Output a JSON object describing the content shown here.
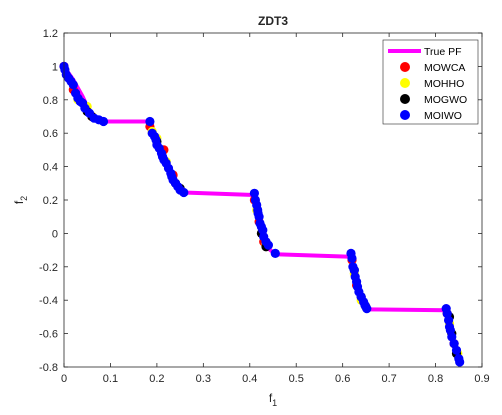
{
  "chart_data": {
    "type": "scatter",
    "title": "ZDT3",
    "xlabel": "f",
    "xlabel_sub": "1",
    "ylabel": "f",
    "ylabel_sub": "2",
    "xlim": [
      0,
      0.9
    ],
    "ylim": [
      -0.8,
      1.2
    ],
    "xticks": [
      0,
      0.1,
      0.2,
      0.3,
      0.4,
      0.5,
      0.6,
      0.7,
      0.8,
      0.9
    ],
    "yticks": [
      -0.8,
      -0.6,
      -0.4,
      -0.2,
      0,
      0.2,
      0.4,
      0.6,
      0.8,
      1,
      1.2
    ],
    "grid": false,
    "legend_position": "top-right",
    "true_pf": {
      "name": "True PF",
      "color": "#ff00ff",
      "segments": [
        [
          [
            0,
            1.0
          ],
          [
            0.01,
            0.96
          ],
          [
            0.02,
            0.92
          ],
          [
            0.03,
            0.87
          ],
          [
            0.04,
            0.82
          ],
          [
            0.05,
            0.76
          ],
          [
            0.06,
            0.72
          ],
          [
            0.07,
            0.69
          ],
          [
            0.083,
            0.67
          ]
        ],
        [
          [
            0.083,
            0.67
          ],
          [
            0.183,
            0.67
          ]
        ],
        [
          [
            0.183,
            0.67
          ],
          [
            0.19,
            0.61
          ],
          [
            0.2,
            0.55
          ],
          [
            0.21,
            0.49
          ],
          [
            0.22,
            0.42
          ],
          [
            0.23,
            0.36
          ],
          [
            0.24,
            0.3
          ],
          [
            0.25,
            0.26
          ],
          [
            0.258,
            0.245
          ]
        ],
        [
          [
            0.258,
            0.245
          ],
          [
            0.409,
            0.23
          ]
        ],
        [
          [
            0.409,
            0.23
          ],
          [
            0.415,
            0.15
          ],
          [
            0.42,
            0.08
          ],
          [
            0.425,
            0.02
          ],
          [
            0.43,
            -0.04
          ],
          [
            0.44,
            -0.09
          ],
          [
            0.455,
            -0.125
          ]
        ],
        [
          [
            0.455,
            -0.125
          ],
          [
            0.618,
            -0.14
          ]
        ],
        [
          [
            0.618,
            -0.14
          ],
          [
            0.625,
            -0.25
          ],
          [
            0.63,
            -0.32
          ],
          [
            0.638,
            -0.38
          ],
          [
            0.645,
            -0.43
          ],
          [
            0.652,
            -0.455
          ]
        ],
        [
          [
            0.652,
            -0.455
          ],
          [
            0.823,
            -0.46
          ]
        ],
        [
          [
            0.823,
            -0.46
          ],
          [
            0.828,
            -0.52
          ],
          [
            0.835,
            -0.6
          ],
          [
            0.842,
            -0.68
          ],
          [
            0.85,
            -0.74
          ],
          [
            0.852,
            -0.773
          ]
        ]
      ]
    },
    "series": [
      {
        "name": "MOWCA",
        "color": "#ff0000",
        "points": [
          [
            0.0,
            1.0
          ],
          [
            0.02,
            0.86
          ],
          [
            0.06,
            0.7
          ],
          [
            0.185,
            0.64
          ],
          [
            0.215,
            0.5
          ],
          [
            0.235,
            0.35
          ],
          [
            0.41,
            0.2
          ],
          [
            0.42,
            0.07
          ],
          [
            0.43,
            -0.05
          ],
          [
            0.62,
            -0.16
          ],
          [
            0.63,
            -0.31
          ],
          [
            0.825,
            -0.48
          ],
          [
            0.84,
            -0.66
          ]
        ]
      },
      {
        "name": "MOHHO",
        "color": "#ffff00",
        "points": [
          [
            0.03,
            0.8
          ],
          [
            0.05,
            0.76
          ],
          [
            0.19,
            0.61
          ],
          [
            0.2,
            0.57
          ],
          [
            0.22,
            0.43
          ],
          [
            0.415,
            0.14
          ],
          [
            0.435,
            -0.06
          ],
          [
            0.625,
            -0.24
          ],
          [
            0.64,
            -0.4
          ],
          [
            0.83,
            -0.54
          ],
          [
            0.848,
            -0.72
          ]
        ]
      },
      {
        "name": "MOGWO",
        "color": "#000000",
        "points": [
          [
            0.05,
            0.73
          ],
          [
            0.06,
            0.7
          ],
          [
            0.2,
            0.55
          ],
          [
            0.24,
            0.3
          ],
          [
            0.25,
            0.27
          ],
          [
            0.425,
            0.0
          ],
          [
            0.435,
            -0.08
          ],
          [
            0.625,
            -0.22
          ],
          [
            0.64,
            -0.38
          ],
          [
            0.65,
            -0.44
          ],
          [
            0.83,
            -0.5
          ],
          [
            0.835,
            -0.6
          ],
          [
            0.845,
            -0.72
          ]
        ]
      },
      {
        "name": "MOIWO",
        "color": "#0000ff",
        "points": [
          [
            0.0,
            1.0
          ],
          [
            0.002,
            0.98
          ],
          [
            0.005,
            0.95
          ],
          [
            0.01,
            0.93
          ],
          [
            0.015,
            0.91
          ],
          [
            0.02,
            0.89
          ],
          [
            0.025,
            0.84
          ],
          [
            0.03,
            0.81
          ],
          [
            0.035,
            0.79
          ],
          [
            0.04,
            0.78
          ],
          [
            0.045,
            0.75
          ],
          [
            0.055,
            0.72
          ],
          [
            0.065,
            0.69
          ],
          [
            0.075,
            0.68
          ],
          [
            0.085,
            0.67
          ],
          [
            0.185,
            0.67
          ],
          [
            0.19,
            0.6
          ],
          [
            0.195,
            0.58
          ],
          [
            0.198,
            0.56
          ],
          [
            0.2,
            0.53
          ],
          [
            0.205,
            0.51
          ],
          [
            0.21,
            0.48
          ],
          [
            0.212,
            0.46
          ],
          [
            0.215,
            0.44
          ],
          [
            0.22,
            0.42
          ],
          [
            0.225,
            0.39
          ],
          [
            0.23,
            0.36
          ],
          [
            0.232,
            0.34
          ],
          [
            0.235,
            0.32
          ],
          [
            0.24,
            0.3
          ],
          [
            0.245,
            0.28
          ],
          [
            0.25,
            0.26
          ],
          [
            0.258,
            0.245
          ],
          [
            0.41,
            0.24
          ],
          [
            0.412,
            0.2
          ],
          [
            0.415,
            0.17
          ],
          [
            0.417,
            0.14
          ],
          [
            0.418,
            0.12
          ],
          [
            0.42,
            0.1
          ],
          [
            0.422,
            0.06
          ],
          [
            0.425,
            0.04
          ],
          [
            0.428,
            0.02
          ],
          [
            0.43,
            -0.02
          ],
          [
            0.435,
            -0.05
          ],
          [
            0.44,
            -0.07
          ],
          [
            0.455,
            -0.12
          ],
          [
            0.618,
            -0.12
          ],
          [
            0.62,
            -0.15
          ],
          [
            0.622,
            -0.2
          ],
          [
            0.625,
            -0.22
          ],
          [
            0.627,
            -0.26
          ],
          [
            0.63,
            -0.29
          ],
          [
            0.632,
            -0.32
          ],
          [
            0.635,
            -0.35
          ],
          [
            0.64,
            -0.38
          ],
          [
            0.645,
            -0.41
          ],
          [
            0.648,
            -0.43
          ],
          [
            0.652,
            -0.45
          ],
          [
            0.823,
            -0.45
          ],
          [
            0.825,
            -0.48
          ],
          [
            0.828,
            -0.52
          ],
          [
            0.83,
            -0.56
          ],
          [
            0.832,
            -0.58
          ],
          [
            0.835,
            -0.62
          ],
          [
            0.84,
            -0.66
          ],
          [
            0.845,
            -0.7
          ],
          [
            0.85,
            -0.75
          ],
          [
            0.852,
            -0.77
          ]
        ]
      }
    ]
  }
}
